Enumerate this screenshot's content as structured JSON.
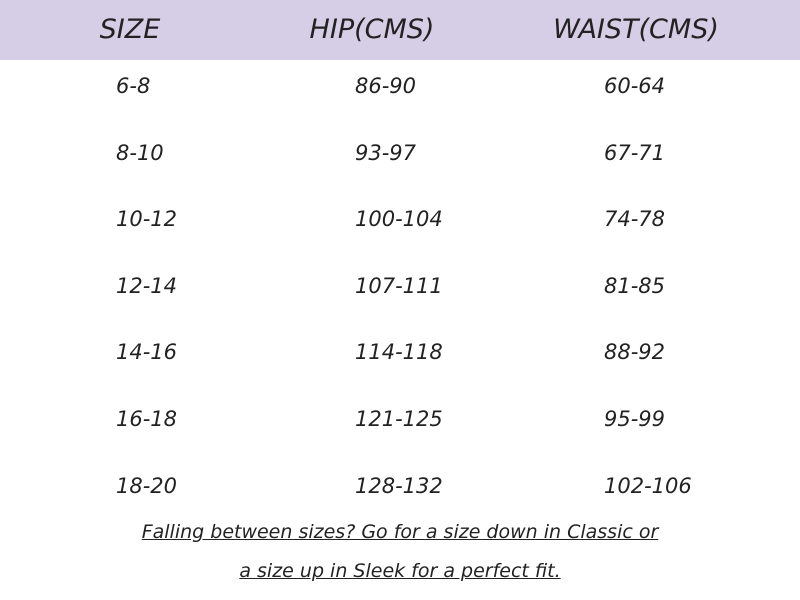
{
  "table": {
    "header": [
      "SIZE",
      "HIP(CMS)",
      "WAIST(CMS)"
    ],
    "rows": [
      [
        "6-8",
        "86-90",
        "60-64"
      ],
      [
        "8-10",
        "93-97",
        "67-71"
      ],
      [
        "10-12",
        "100-104",
        "74-78"
      ],
      [
        "12-14",
        "107-111",
        "81-85"
      ],
      [
        "14-16",
        "114-118",
        "88-92"
      ],
      [
        "16-18",
        "121-125",
        "95-99"
      ],
      [
        "18-20",
        "128-132",
        "102-106"
      ]
    ]
  },
  "footnote": [
    "Falling between sizes? Go for a size down in Classic or",
    "a size up in Sleek for a perfect fit."
  ]
}
